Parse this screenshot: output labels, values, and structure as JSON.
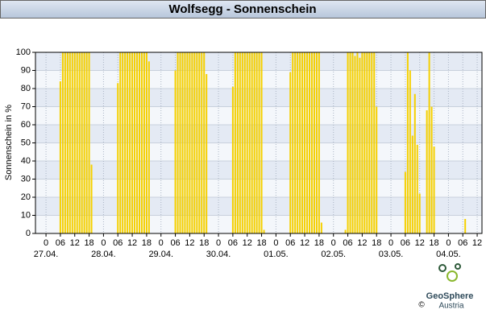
{
  "chart_data": {
    "type": "bar",
    "title": "Wolfsegg - Sonnenschein",
    "y_label": "Sonnenschein in %",
    "color": "#f5d000",
    "grid": true,
    "x": [
      6,
      7,
      8,
      9,
      10,
      11,
      12,
      13,
      14,
      15,
      16,
      17,
      18,
      19,
      30,
      31,
      32,
      33,
      34,
      35,
      36,
      37,
      38,
      39,
      40,
      41,
      42,
      43,
      54,
      55,
      56,
      57,
      58,
      59,
      60,
      61,
      62,
      63,
      64,
      65,
      66,
      67,
      78,
      79,
      80,
      81,
      82,
      83,
      84,
      85,
      86,
      87,
      88,
      89,
      90,
      91,
      102,
      103,
      104,
      105,
      106,
      107,
      108,
      109,
      110,
      111,
      112,
      113,
      114,
      115,
      125,
      126,
      127,
      128,
      129,
      130,
      131,
      132,
      133,
      134,
      135,
      136,
      137,
      138,
      150,
      151,
      152,
      153,
      154,
      155,
      156,
      159,
      160,
      161,
      162,
      175
    ],
    "values": [
      84,
      100,
      100,
      100,
      100,
      100,
      100,
      100,
      100,
      100,
      100,
      100,
      100,
      38,
      83,
      100,
      100,
      100,
      100,
      100,
      100,
      100,
      100,
      100,
      100,
      100,
      100,
      95,
      90,
      100,
      100,
      100,
      100,
      100,
      100,
      100,
      100,
      100,
      100,
      100,
      100,
      88,
      81,
      100,
      100,
      100,
      100,
      100,
      100,
      100,
      100,
      100,
      100,
      100,
      100,
      2,
      89,
      100,
      100,
      100,
      100,
      100,
      100,
      100,
      100,
      100,
      100,
      100,
      100,
      6,
      2,
      100,
      100,
      100,
      98,
      100,
      97,
      100,
      100,
      100,
      100,
      100,
      100,
      70,
      34,
      100,
      90,
      54,
      77,
      49,
      22,
      68,
      100,
      70,
      48,
      8
    ],
    "xlim": [
      -4.4,
      182
    ],
    "xticks": [
      0,
      {
        "value": 6,
        "label": "06"
      },
      12,
      18,
      {
        "value": 24,
        "label": "0"
      },
      {
        "value": 30,
        "label": "06"
      },
      {
        "value": 36,
        "label": "12"
      },
      {
        "value": 42,
        "label": "18"
      },
      {
        "value": 48,
        "label": "0"
      },
      {
        "value": 54,
        "label": "06"
      },
      {
        "value": 60,
        "label": "12"
      },
      {
        "value": 66,
        "label": "18"
      },
      {
        "value": 72,
        "label": "0"
      },
      {
        "value": 78,
        "label": "06"
      },
      {
        "value": 84,
        "label": "12"
      },
      {
        "value": 90,
        "label": "18"
      },
      {
        "value": 96,
        "label": "0"
      },
      {
        "value": 102,
        "label": "06"
      },
      {
        "value": 108,
        "label": "12"
      },
      {
        "value": 114,
        "label": "18"
      },
      {
        "value": 120,
        "label": "0"
      },
      {
        "value": 126,
        "label": "06"
      },
      {
        "value": 132,
        "label": "12"
      },
      {
        "value": 138,
        "label": "18"
      },
      {
        "value": 144,
        "label": "0"
      },
      {
        "value": 150,
        "label": "06"
      },
      {
        "value": 156,
        "label": "12"
      },
      {
        "value": 162,
        "label": "18"
      },
      {
        "value": 168,
        "label": "0"
      },
      {
        "value": 174,
        "label": "06"
      },
      {
        "value": 180,
        "label": "12"
      }
    ],
    "date_labels": [
      {
        "value": 0,
        "label": "27.04."
      },
      {
        "value": 24,
        "label": "28.04."
      },
      {
        "value": 48,
        "label": "29.04."
      },
      {
        "value": 72,
        "label": "30.04."
      },
      {
        "value": 96,
        "label": "01.05."
      },
      {
        "value": 120,
        "label": "02.05."
      },
      {
        "value": 144,
        "label": "03.05."
      },
      {
        "value": 168,
        "label": "04.05."
      }
    ],
    "ylim": [
      0,
      100
    ],
    "yticks": [
      0,
      10,
      20,
      30,
      40,
      50,
      60,
      70,
      80,
      90,
      100
    ]
  },
  "logo": {
    "name": "GeoSphere",
    "sub": "Austria",
    "copyright": "©"
  }
}
